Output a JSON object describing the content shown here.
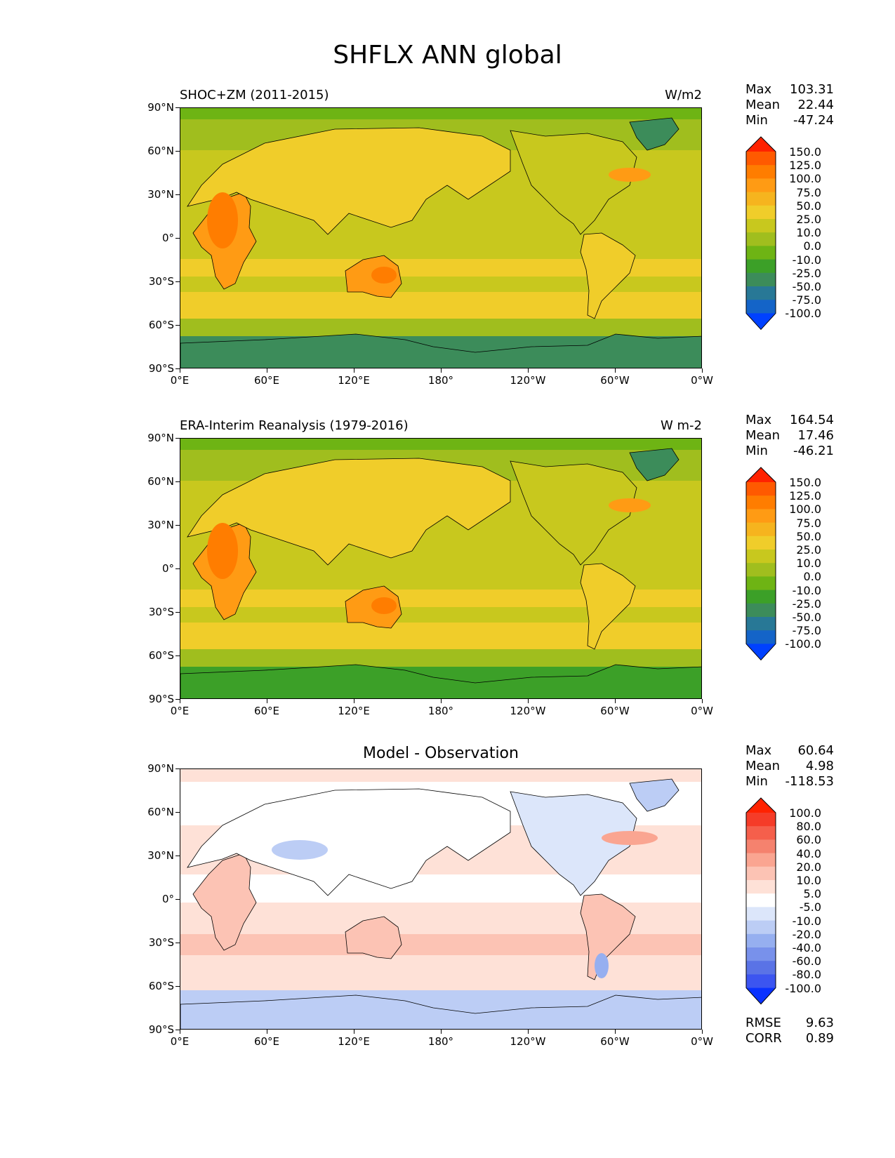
{
  "figure_title": "SHFLX ANN global",
  "chart_data": [
    {
      "type": "heatmap",
      "panel": "test",
      "title": "SHOC+ZM (2011-2015)",
      "units": "W/m2",
      "stats": {
        "max": "103.31",
        "mean": "22.44",
        "min": "-47.24"
      },
      "stat_labels": {
        "max": "Max",
        "mean": "Mean",
        "min": "Min"
      },
      "y_ticks": [
        "90°N",
        "60°N",
        "30°N",
        "0°",
        "30°S",
        "60°S",
        "90°S"
      ],
      "x_ticks": [
        "0°E",
        "60°E",
        "120°E",
        "180°",
        "120°W",
        "60°W",
        "0°W"
      ],
      "colorbar_levels": [
        "150.0",
        "125.0",
        "100.0",
        "75.0",
        "50.0",
        "25.0",
        "10.0",
        "0.0",
        "-10.0",
        "-25.0",
        "-50.0",
        "-75.0",
        "-100.0"
      ],
      "colorbar_colors": [
        "#ff2200",
        "#ff5a00",
        "#ff7d00",
        "#ff9b14",
        "#f6b41e",
        "#f0cd2a",
        "#c8c81e",
        "#a0be1e",
        "#6eb414",
        "#3ca028",
        "#3c8c5a",
        "#287896",
        "#1464c8",
        "#0041ff"
      ]
    },
    {
      "type": "heatmap",
      "panel": "reference",
      "title": "ERA-Interim Reanalysis (1979-2016)",
      "units": "W m-2",
      "stats": {
        "max": "164.54",
        "mean": "17.46",
        "min": "-46.21"
      },
      "stat_labels": {
        "max": "Max",
        "mean": "Mean",
        "min": "Min"
      },
      "y_ticks": [
        "90°N",
        "60°N",
        "30°N",
        "0°",
        "30°S",
        "60°S",
        "90°S"
      ],
      "x_ticks": [
        "0°E",
        "60°E",
        "120°E",
        "180°",
        "120°W",
        "60°W",
        "0°W"
      ],
      "colorbar_levels": [
        "150.0",
        "125.0",
        "100.0",
        "75.0",
        "50.0",
        "25.0",
        "10.0",
        "0.0",
        "-10.0",
        "-25.0",
        "-50.0",
        "-75.0",
        "-100.0"
      ],
      "colorbar_colors": [
        "#ff2200",
        "#ff5a00",
        "#ff7d00",
        "#ff9b14",
        "#f6b41e",
        "#f0cd2a",
        "#c8c81e",
        "#a0be1e",
        "#6eb414",
        "#3ca028",
        "#3c8c5a",
        "#287896",
        "#1464c8",
        "#0041ff"
      ]
    },
    {
      "type": "heatmap",
      "panel": "difference",
      "title": "Model - Observation",
      "units": "",
      "stats": {
        "max": "60.64",
        "mean": "4.98",
        "min": "-118.53"
      },
      "stat_labels": {
        "max": "Max",
        "mean": "Mean",
        "min": "Min"
      },
      "metrics": {
        "rmse_label": "RMSE",
        "rmse": "9.63",
        "corr_label": "CORR",
        "corr": "0.89"
      },
      "y_ticks": [
        "90°N",
        "60°N",
        "30°N",
        "0°",
        "30°S",
        "60°S",
        "90°S"
      ],
      "x_ticks": [
        "0°E",
        "60°E",
        "120°E",
        "180°",
        "120°W",
        "60°W",
        "0°W"
      ],
      "colorbar_levels": [
        "100.0",
        "80.0",
        "60.0",
        "40.0",
        "20.0",
        "10.0",
        "5.0",
        "-5.0",
        "-10.0",
        "-20.0",
        "-40.0",
        "-60.0",
        "-80.0",
        "-100.0"
      ],
      "colorbar_colors": [
        "#ff2200",
        "#f53c28",
        "#f55f4b",
        "#f5826e",
        "#faa591",
        "#fcc3b4",
        "#fee1d7",
        "#ffffff",
        "#dce6fa",
        "#bccdf5",
        "#96aff0",
        "#7891eb",
        "#5a73e6",
        "#3c55f0",
        "#0a32ff"
      ]
    }
  ]
}
